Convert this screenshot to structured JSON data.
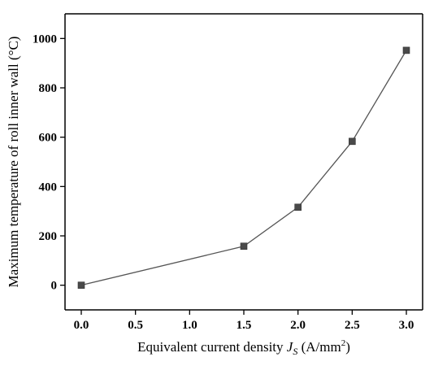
{
  "chart_data": {
    "type": "line",
    "title": "",
    "xlabel": "Equivalent current density J_S (A/mm²)",
    "xlabel_parts": {
      "prefix": "Equivalent current density ",
      "symbol_main": "J",
      "symbol_sub": "S",
      "unit_open": " (A/mm",
      "unit_sup": "2",
      "unit_close": ")"
    },
    "ylabel": "Maximum temperature of roll inner wall (°C)",
    "xlim": [
      -0.15,
      3.15
    ],
    "ylim": [
      -100,
      1100
    ],
    "xticks": [
      0.0,
      0.5,
      1.0,
      1.5,
      2.0,
      2.5,
      3.0
    ],
    "xtick_labels": [
      "0.0",
      "0.5",
      "1.0",
      "1.5",
      "2.0",
      "2.5",
      "3.0"
    ],
    "yticks": [
      0,
      200,
      400,
      600,
      800,
      1000
    ],
    "ytick_labels": [
      "0",
      "200",
      "400",
      "600",
      "800",
      "1000"
    ],
    "grid": false,
    "legend": "none",
    "series": [
      {
        "x": [
          0.0,
          1.5,
          2.0,
          2.5,
          3.0
        ],
        "y": [
          0,
          158,
          316,
          583,
          952
        ],
        "marker": "square",
        "color": "#4a4a4a"
      }
    ]
  }
}
